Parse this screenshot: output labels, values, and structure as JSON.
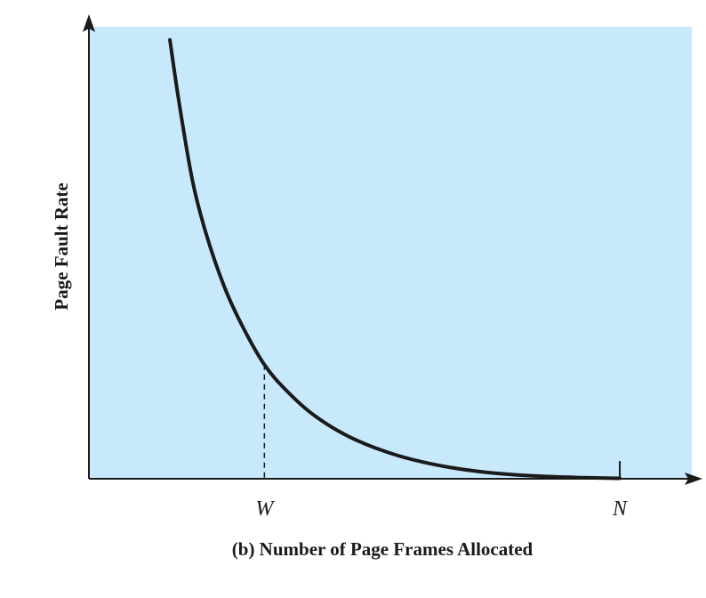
{
  "colors": {
    "plot_background": "#c7e9fb",
    "ink": "#1a1a1a"
  },
  "chart_data": {
    "type": "line",
    "title": "",
    "xlabel": "(b) Number of Page Frames Allocated",
    "ylabel": "Page Fault Rate",
    "x_ticks": [
      {
        "label": "W",
        "x": 0.21
      },
      {
        "label": "N",
        "x": 1.0
      }
    ],
    "xlim": [
      -0.18,
      1.16
    ],
    "ylim": [
      0,
      1.03
    ],
    "grid": false,
    "legend": "none",
    "series": [
      {
        "x": [
          0.0,
          0.02,
          0.05,
          0.08,
          0.12,
          0.16,
          0.21,
          0.26,
          0.32,
          0.4,
          0.5,
          0.6,
          0.7,
          0.8,
          0.9,
          1.0
        ],
        "y": [
          1.0,
          0.86,
          0.68,
          0.56,
          0.44,
          0.35,
          0.26,
          0.2,
          0.145,
          0.095,
          0.055,
          0.03,
          0.015,
          0.007,
          0.003,
          0.001
        ]
      }
    ],
    "annotations": [
      {
        "type": "dashed-vertical",
        "at_tick": "W"
      }
    ]
  }
}
